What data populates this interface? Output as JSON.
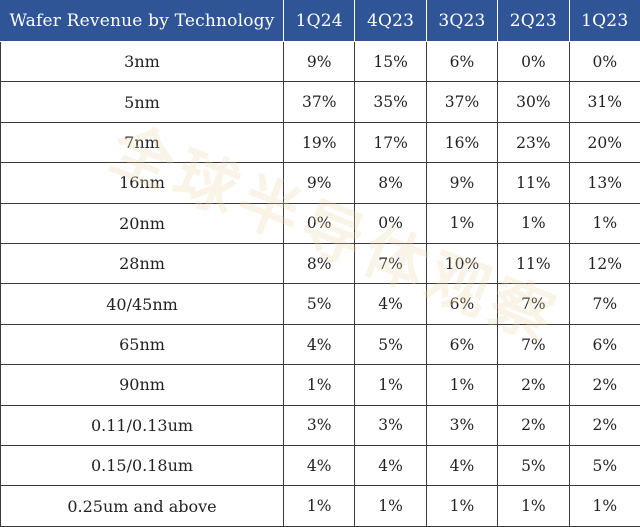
{
  "table": {
    "headers": [
      "Wafer Revenue by Technology",
      "1Q24",
      "4Q23",
      "3Q23",
      "2Q23",
      "1Q23"
    ],
    "rows": [
      {
        "tech": "3nm",
        "values": [
          "9%",
          "15%",
          "6%",
          "0%",
          "0%"
        ]
      },
      {
        "tech": "5nm",
        "values": [
          "37%",
          "35%",
          "37%",
          "30%",
          "31%"
        ]
      },
      {
        "tech": "7nm",
        "values": [
          "19%",
          "17%",
          "16%",
          "23%",
          "20%"
        ]
      },
      {
        "tech": "16nm",
        "values": [
          "9%",
          "8%",
          "9%",
          "11%",
          "13%"
        ]
      },
      {
        "tech": "20nm",
        "values": [
          "0%",
          "0%",
          "1%",
          "1%",
          "1%"
        ]
      },
      {
        "tech": "28nm",
        "values": [
          "8%",
          "7%",
          "10%",
          "11%",
          "12%"
        ]
      },
      {
        "tech": "40/45nm",
        "values": [
          "5%",
          "4%",
          "6%",
          "7%",
          "7%"
        ]
      },
      {
        "tech": "65nm",
        "values": [
          "4%",
          "5%",
          "6%",
          "7%",
          "6%"
        ]
      },
      {
        "tech": "90nm",
        "values": [
          "1%",
          "1%",
          "1%",
          "2%",
          "2%"
        ]
      },
      {
        "tech": "0.11/0.13um",
        "values": [
          "3%",
          "3%",
          "3%",
          "2%",
          "2%"
        ]
      },
      {
        "tech": "0.15/0.18um",
        "values": [
          "4%",
          "4%",
          "4%",
          "5%",
          "5%"
        ]
      },
      {
        "tech": "0.25um and above",
        "values": [
          "1%",
          "1%",
          "1%",
          "1%",
          "1%"
        ]
      }
    ]
  },
  "watermark": "全球半导体观察"
}
